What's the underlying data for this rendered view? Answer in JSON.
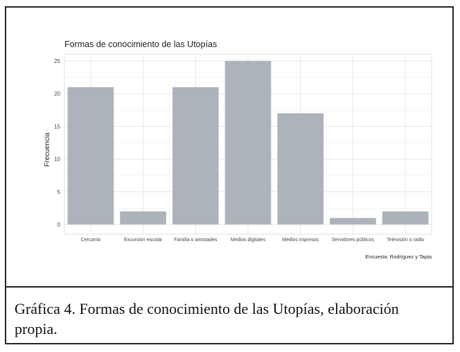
{
  "chart_data": {
    "type": "bar",
    "title": "Formas de conocimiento de las Utopías",
    "xlabel": "",
    "ylabel": "Frecuencia",
    "categories": [
      "Cercanía",
      "Excursión escolar",
      "Familia o amistades",
      "Medios digitales",
      "Medios impresos",
      "Servidores públicos",
      "Televisión o radio"
    ],
    "values": [
      21,
      2,
      21,
      25,
      17,
      1,
      2
    ],
    "ylim": [
      0,
      25.5
    ],
    "yticks": [
      0,
      5,
      10,
      15,
      20,
      25
    ],
    "grid": true,
    "bar_color": "#adb3bb",
    "source_note": "Encuesta: Rodríguez y Tapia"
  },
  "caption": "Gráfica 4. Formas de conocimiento de las Utopías, elaboración propia."
}
